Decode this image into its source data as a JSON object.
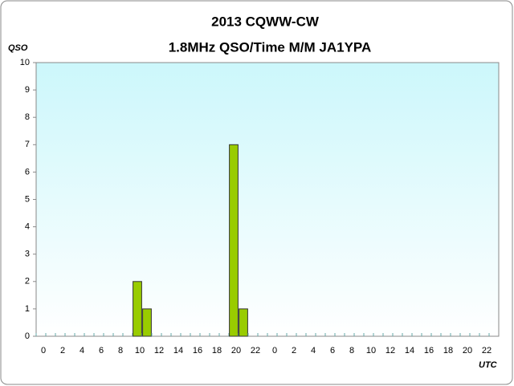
{
  "chart_data": {
    "type": "bar",
    "title": "2013  CQWW-CW",
    "subtitle": "1.8MHz QSO/Time  M/M JA1YPA",
    "ylabel": "QSO",
    "xlabel": "UTC",
    "categories": [
      "0",
      null,
      "2",
      null,
      "4",
      null,
      "6",
      null,
      "8",
      null,
      "10",
      null,
      "12",
      null,
      "14",
      null,
      "16",
      null,
      "18",
      null,
      "20",
      null,
      "22",
      null,
      "0",
      null,
      "2",
      null,
      "4",
      null,
      "6",
      null,
      "8",
      null,
      "10",
      null,
      "12",
      null,
      "14",
      null,
      "16",
      null,
      "18",
      null,
      "20",
      null,
      "22",
      null
    ],
    "values": [
      0,
      0,
      0,
      0,
      0,
      0,
      0,
      0,
      0,
      0,
      2,
      1,
      0,
      0,
      0,
      0,
      0,
      0,
      0,
      0,
      7,
      1,
      0,
      0,
      0,
      0,
      0,
      0,
      0,
      0,
      0,
      0,
      0,
      0,
      0,
      0,
      0,
      0,
      0,
      0,
      0,
      0,
      0,
      0,
      0,
      0,
      0,
      0
    ],
    "color": "#99cc00",
    "ylim": [
      0,
      10
    ],
    "yticks": [
      0,
      1,
      2,
      3,
      4,
      5,
      6,
      7,
      8,
      9,
      10
    ],
    "grid": false
  }
}
